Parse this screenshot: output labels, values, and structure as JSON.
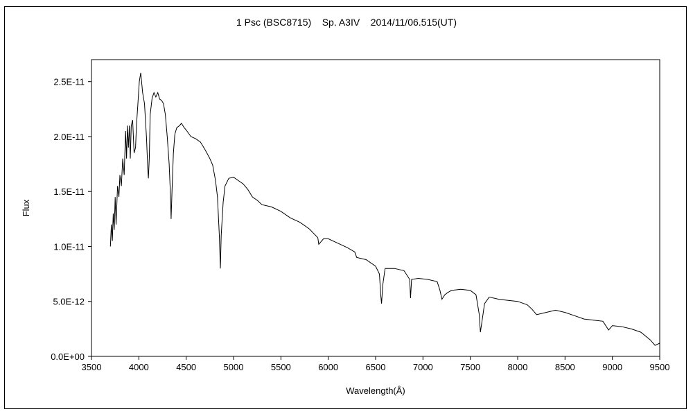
{
  "chart_data": {
    "type": "line",
    "title": "1 Psc (BSC8715)    Sp. A3IV    2014/11/06.515(UT)",
    "xlabel": "Wavelength(Å)",
    "ylabel": "Flux",
    "xlim": [
      3500,
      9500
    ],
    "ylim": [
      0,
      2.7e-11
    ],
    "x_ticks": [
      3500,
      4000,
      4500,
      5000,
      5500,
      6000,
      6500,
      7000,
      7500,
      8000,
      8500,
      9000,
      9500
    ],
    "x_tick_labels": [
      "3500",
      "4000",
      "4500",
      "5000",
      "5500",
      "6000",
      "6500",
      "7000",
      "7500",
      "8000",
      "8500",
      "9000",
      "9500"
    ],
    "y_ticks": [
      0,
      5e-12,
      1e-11,
      1.5e-11,
      2e-11,
      2.5e-11
    ],
    "y_tick_labels": [
      "0.0E+00",
      "5.0E-12",
      "1.0E-11",
      "1.5E-11",
      "2.0E-11",
      "2.5E-11"
    ],
    "grid": false,
    "series": [
      {
        "color": "#000000",
        "points": [
          [
            3700,
            1e-11
          ],
          [
            3710,
            1.2e-11
          ],
          [
            3720,
            1.05e-11
          ],
          [
            3730,
            1.3e-11
          ],
          [
            3740,
            1.15e-11
          ],
          [
            3750,
            1.45e-11
          ],
          [
            3760,
            1.2e-11
          ],
          [
            3775,
            1.55e-11
          ],
          [
            3790,
            1.45e-11
          ],
          [
            3800,
            1.65e-11
          ],
          [
            3815,
            1.55e-11
          ],
          [
            3830,
            1.8e-11
          ],
          [
            3845,
            1.65e-11
          ],
          [
            3860,
            2.05e-11
          ],
          [
            3870,
            1.8e-11
          ],
          [
            3880,
            2.1e-11
          ],
          [
            3890,
            1.9e-11
          ],
          [
            3900,
            2.1e-11
          ],
          [
            3910,
            1.8e-11
          ],
          [
            3920,
            2.1e-11
          ],
          [
            3935,
            2.15e-11
          ],
          [
            3950,
            1.85e-11
          ],
          [
            3965,
            1.9e-11
          ],
          [
            3975,
            2.1e-11
          ],
          [
            3990,
            2.3e-11
          ],
          [
            4005,
            2.5e-11
          ],
          [
            4020,
            2.58e-11
          ],
          [
            4040,
            2.4e-11
          ],
          [
            4060,
            2.3e-11
          ],
          [
            4080,
            2e-11
          ],
          [
            4095,
            1.7e-11
          ],
          [
            4101,
            1.62e-11
          ],
          [
            4110,
            1.8e-11
          ],
          [
            4120,
            2.2e-11
          ],
          [
            4140,
            2.35e-11
          ],
          [
            4160,
            2.4e-11
          ],
          [
            4180,
            2.36e-11
          ],
          [
            4200,
            2.4e-11
          ],
          [
            4220,
            2.34e-11
          ],
          [
            4240,
            2.33e-11
          ],
          [
            4260,
            2.3e-11
          ],
          [
            4280,
            2.2e-11
          ],
          [
            4300,
            2e-11
          ],
          [
            4320,
            1.75e-11
          ],
          [
            4335,
            1.45e-11
          ],
          [
            4341,
            1.25e-11
          ],
          [
            4350,
            1.5e-11
          ],
          [
            4365,
            1.85e-11
          ],
          [
            4380,
            2.02e-11
          ],
          [
            4400,
            2.08e-11
          ],
          [
            4430,
            2.1e-11
          ],
          [
            4450,
            2.12e-11
          ],
          [
            4480,
            2.08e-11
          ],
          [
            4500,
            2.06e-11
          ],
          [
            4550,
            2e-11
          ],
          [
            4600,
            1.98e-11
          ],
          [
            4650,
            1.95e-11
          ],
          [
            4700,
            1.88e-11
          ],
          [
            4750,
            1.8e-11
          ],
          [
            4780,
            1.74e-11
          ],
          [
            4810,
            1.6e-11
          ],
          [
            4830,
            1.45e-11
          ],
          [
            4850,
            1.1e-11
          ],
          [
            4861,
            8e-12
          ],
          [
            4870,
            1.1e-11
          ],
          [
            4890,
            1.4e-11
          ],
          [
            4910,
            1.55e-11
          ],
          [
            4950,
            1.62e-11
          ],
          [
            5000,
            1.63e-11
          ],
          [
            5050,
            1.6e-11
          ],
          [
            5100,
            1.57e-11
          ],
          [
            5150,
            1.52e-11
          ],
          [
            5200,
            1.45e-11
          ],
          [
            5250,
            1.42e-11
          ],
          [
            5300,
            1.38e-11
          ],
          [
            5400,
            1.36e-11
          ],
          [
            5500,
            1.32e-11
          ],
          [
            5600,
            1.26e-11
          ],
          [
            5700,
            1.22e-11
          ],
          [
            5800,
            1.16e-11
          ],
          [
            5890,
            1.08e-11
          ],
          [
            5900,
            1.02e-11
          ],
          [
            5950,
            1.07e-11
          ],
          [
            6000,
            1.07e-11
          ],
          [
            6100,
            1.03e-11
          ],
          [
            6200,
            9.9e-12
          ],
          [
            6280,
            9.5e-12
          ],
          [
            6300,
            9e-12
          ],
          [
            6400,
            8.8e-12
          ],
          [
            6500,
            8.2e-12
          ],
          [
            6540,
            7.5e-12
          ],
          [
            6555,
            5.5e-12
          ],
          [
            6563,
            4.8e-12
          ],
          [
            6575,
            6.5e-12
          ],
          [
            6600,
            8e-12
          ],
          [
            6700,
            8e-12
          ],
          [
            6800,
            7.8e-12
          ],
          [
            6860,
            7e-12
          ],
          [
            6869,
            5.3e-12
          ],
          [
            6880,
            7e-12
          ],
          [
            6950,
            7.1e-12
          ],
          [
            7050,
            7e-12
          ],
          [
            7150,
            6.8e-12
          ],
          [
            7180,
            6e-12
          ],
          [
            7200,
            5.2e-12
          ],
          [
            7230,
            5.6e-12
          ],
          [
            7260,
            5.8e-12
          ],
          [
            7300,
            6e-12
          ],
          [
            7400,
            6.1e-12
          ],
          [
            7500,
            6e-12
          ],
          [
            7560,
            5.6e-12
          ],
          [
            7595,
            3.8e-12
          ],
          [
            7606,
            2.2e-12
          ],
          [
            7620,
            3e-12
          ],
          [
            7650,
            4.8e-12
          ],
          [
            7700,
            5.4e-12
          ],
          [
            7800,
            5.2e-12
          ],
          [
            7900,
            5.1e-12
          ],
          [
            8000,
            5e-12
          ],
          [
            8100,
            4.7e-12
          ],
          [
            8150,
            4.3e-12
          ],
          [
            8200,
            3.8e-12
          ],
          [
            8300,
            4e-12
          ],
          [
            8400,
            4.2e-12
          ],
          [
            8500,
            4e-12
          ],
          [
            8600,
            3.7e-12
          ],
          [
            8700,
            3.4e-12
          ],
          [
            8800,
            3.3e-12
          ],
          [
            8900,
            3.2e-12
          ],
          [
            8960,
            2.4e-12
          ],
          [
            9000,
            2.8e-12
          ],
          [
            9100,
            2.7e-12
          ],
          [
            9200,
            2.5e-12
          ],
          [
            9300,
            2.2e-12
          ],
          [
            9400,
            1.5e-12
          ],
          [
            9450,
            1e-12
          ],
          [
            9500,
            1.2e-12
          ]
        ]
      }
    ]
  }
}
